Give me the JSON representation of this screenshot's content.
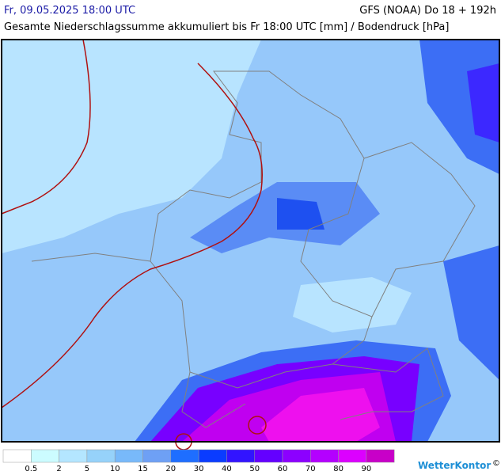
{
  "header": {
    "datetime": "Fr, 09.05.2025 18:00 UTC",
    "model": "GFS (NOAA) Do 18 + 192h",
    "title": "Gesamte Niederschlagssumme akkumuliert bis Fr 18:00 UTC [mm] / Bodendruck [hPa]"
  },
  "legend": {
    "labels": [
      0.5,
      2,
      5,
      10,
      15,
      20,
      30,
      40,
      50,
      60,
      70,
      80,
      90
    ],
    "colors": [
      "#ffffff",
      "#ccfcff",
      "#b4e6ff",
      "#96d2fa",
      "#78b9fa",
      "#6ea0f5",
      "#1e6eff",
      "#0a3cff",
      "#3214ff",
      "#6400ff",
      "#8c00ff",
      "#b400ff",
      "#dc00ff",
      "#c800c8"
    ]
  },
  "footer": {
    "logo": "WetterKontor",
    "copyright": "©"
  }
}
